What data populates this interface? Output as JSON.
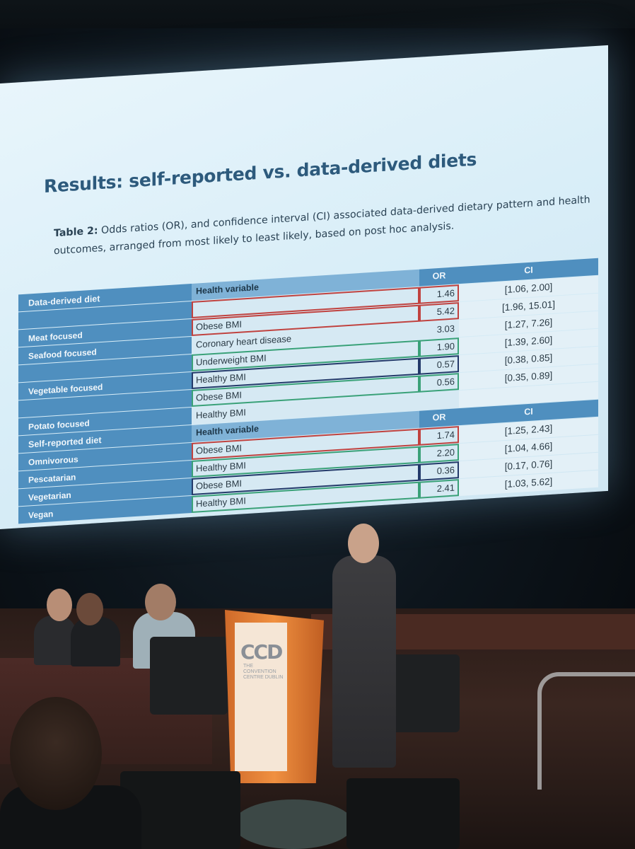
{
  "slide": {
    "title": "Results: self-reported vs. data-derived diets",
    "caption_bold": "Table 2:",
    "caption_text": " Odds ratios (OR), and confidence interval (CI) associated data-derived dietary pattern and health outcomes, arranged from most likely to least likely, based on post hoc analysis.",
    "table": {
      "header1": {
        "c1": "Data-derived diet",
        "c2": "Health variable",
        "c3": "OR",
        "c4": "CI"
      },
      "rows1": [
        {
          "diet": "",
          "variable": "",
          "or": "1.46",
          "ci": "[1.06, 2.00]",
          "box": "red"
        },
        {
          "diet": "Meat focused",
          "variable": "Obese BMI",
          "or": "5.42",
          "ci": "[1.96, 15.01]",
          "box": "red"
        },
        {
          "diet": "Seafood focused",
          "variable": "Coronary heart disease",
          "or": "3.03",
          "ci": "[1.27, 7.26]",
          "box": ""
        },
        {
          "diet": "",
          "variable": "Underweight BMI",
          "or": "1.90",
          "ci": "[1.39, 2.60]",
          "box": "green"
        },
        {
          "diet": "Vegetable focused",
          "variable": "Healthy BMI",
          "or": "0.57",
          "ci": "[0.38, 0.85]",
          "box": "navy"
        },
        {
          "diet": "",
          "variable": "Obese BMI",
          "or": "0.56",
          "ci": "[0.35, 0.89]",
          "box": "green"
        },
        {
          "diet": "Potato focused",
          "variable": "Healthy  BMI",
          "or": "",
          "ci": "",
          "box": ""
        }
      ],
      "header2": {
        "c1": "Self-reported diet",
        "c2": "Health variable",
        "c3": "OR",
        "c4": "CI"
      },
      "rows2": [
        {
          "diet": "Omnivorous",
          "variable": "Obese BMI",
          "or": "1.74",
          "ci": "[1.25, 2.43]",
          "box": "red"
        },
        {
          "diet": "Pescatarian",
          "variable": "Healthy  BMI",
          "or": "2.20",
          "ci": "[1.04, 4.66]",
          "box": "green"
        },
        {
          "diet": "Vegetarian",
          "variable": "Obese BMI",
          "or": "0.36",
          "ci": "[0.17, 0.76]",
          "box": "navy"
        },
        {
          "diet": "Vegan",
          "variable": "Healthy BMI",
          "or": "2.41",
          "ci": "[1.03, 5.62]",
          "box": "green"
        }
      ]
    }
  },
  "podium": {
    "logo": "CCD",
    "sub": "THE CONVENTION CENTRE DUBLIN"
  },
  "colors": {
    "title": "#2d5a7c",
    "table_header": "#4f8fbf",
    "cell": "#d6e9f3",
    "box_red": "#c0423f",
    "box_green": "#3aa178",
    "box_navy": "#233a6a",
    "podium": "#f09040"
  }
}
